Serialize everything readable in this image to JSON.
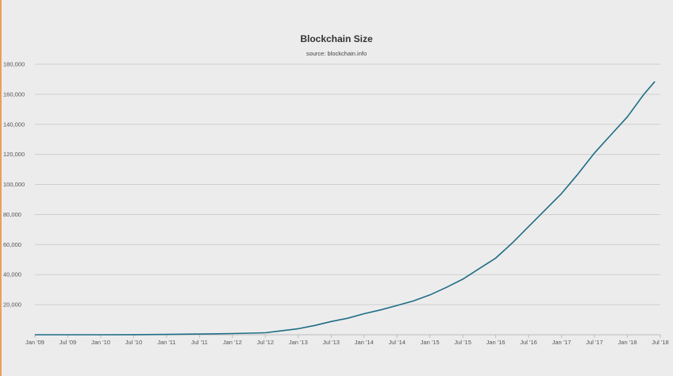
{
  "colors": {
    "background": "#ececec",
    "line": "#1f6d86",
    "grid": "#cfcfcf",
    "accent_edge": "#e8a15a"
  },
  "chart_data": {
    "type": "line",
    "title": "Blockchain Size",
    "subtitle": "source: blockchain.info",
    "xlabel": "",
    "ylabel": "",
    "grid": true,
    "legend": "none",
    "ylim": [
      0,
      180000
    ],
    "y_ticks": [
      20000,
      40000,
      60000,
      80000,
      100000,
      120000,
      140000,
      160000,
      180000
    ],
    "y_tick_labels": [
      "20,000",
      "40,000",
      "60,000",
      "80,000",
      "100,000",
      "120,000",
      "140,000",
      "160,000",
      "180,000"
    ],
    "x_ticks": [
      "2009-01",
      "2009-07",
      "2010-01",
      "2010-07",
      "2011-01",
      "2011-07",
      "2012-01",
      "2012-07",
      "2013-01",
      "2013-07",
      "2014-01",
      "2014-07",
      "2015-01",
      "2015-07",
      "2016-01",
      "2016-07",
      "2017-01",
      "2017-07",
      "2018-01",
      "2018-07"
    ],
    "x_tick_labels": [
      "Jan '09",
      "Jul '09",
      "Jan '10",
      "Jul '10",
      "Jan '11",
      "Jul '11",
      "Jan '12",
      "Jul '12",
      "Jan '13",
      "Jul '13",
      "Jan '14",
      "Jul '14",
      "Jan '15",
      "Jul '15",
      "Jan '16",
      "Jul '16",
      "Jan '17",
      "Jul '17",
      "Jan '18",
      "Jul '18"
    ],
    "series": [
      {
        "points": [
          [
            "2009-01",
            0
          ],
          [
            "2009-07",
            0
          ],
          [
            "2010-01",
            0
          ],
          [
            "2010-07",
            50
          ],
          [
            "2011-01",
            200
          ],
          [
            "2011-07",
            500
          ],
          [
            "2012-01",
            800
          ],
          [
            "2012-07",
            1300
          ],
          [
            "2012-10",
            2700
          ],
          [
            "2013-01",
            4000
          ],
          [
            "2013-04",
            6200
          ],
          [
            "2013-07",
            8800
          ],
          [
            "2013-10",
            11000
          ],
          [
            "2014-01",
            14000
          ],
          [
            "2014-04",
            16500
          ],
          [
            "2014-07",
            19500
          ],
          [
            "2014-10",
            22500
          ],
          [
            "2015-01",
            26500
          ],
          [
            "2015-04",
            31500
          ],
          [
            "2015-07",
            37000
          ],
          [
            "2015-10",
            44000
          ],
          [
            "2016-01",
            51000
          ],
          [
            "2016-04",
            61000
          ],
          [
            "2016-07",
            72000
          ],
          [
            "2016-10",
            83000
          ],
          [
            "2017-01",
            94000
          ],
          [
            "2017-04",
            107000
          ],
          [
            "2017-07",
            121000
          ],
          [
            "2017-10",
            133000
          ],
          [
            "2018-01",
            145000
          ],
          [
            "2018-04",
            160000
          ],
          [
            "2018-06",
            168500
          ]
        ]
      }
    ]
  }
}
